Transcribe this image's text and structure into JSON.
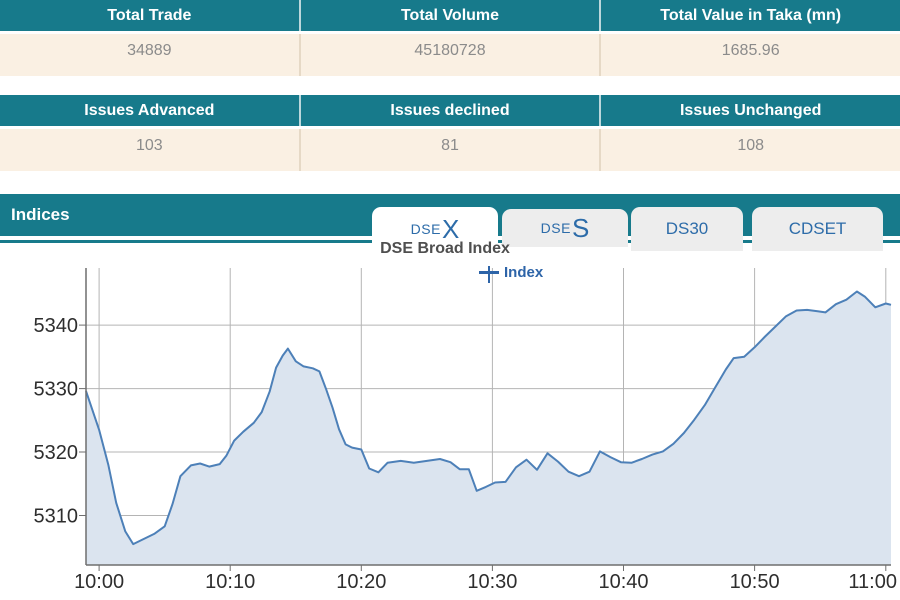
{
  "colors": {
    "teal_header": "#177a8b",
    "cream_row": "#faf0e3",
    "header_text": "#ffffff",
    "value_text": "#8b8b8b",
    "tab_text": "#2d6ca9",
    "tab_inactive_bg": "#ededed",
    "tab_active_bg": "#ffffff"
  },
  "summary_table": {
    "columns": [
      {
        "header": "Total Trade",
        "value": "34889"
      },
      {
        "header": "Total Volume",
        "value": "45180728"
      },
      {
        "header": "Total Value in Taka (mn)",
        "value": "1685.96"
      }
    ]
  },
  "issues_table": {
    "columns": [
      {
        "header": "Issues Advanced",
        "value": "103"
      },
      {
        "header": "Issues declined",
        "value": "81"
      },
      {
        "header": "Issues Unchanged",
        "value": "108"
      }
    ]
  },
  "indices": {
    "title": "Indices",
    "tabs": [
      {
        "label": "DSEX",
        "prefix": "DSE",
        "suffix": "X",
        "active": true
      },
      {
        "label": "DSES",
        "prefix": "DSE",
        "suffix": "S",
        "active": false
      },
      {
        "label": "DS30",
        "active": false
      },
      {
        "label": "CDSET",
        "active": false
      }
    ]
  },
  "chart_data": {
    "type": "area",
    "title": "DSE Broad Index",
    "legend": {
      "items": [
        "Index"
      ],
      "position": "top-center"
    },
    "xlabel": "",
    "ylabel": "",
    "x_unit": "minutes after 10:00",
    "x_ticks": [
      {
        "t": 0,
        "label": "10:00"
      },
      {
        "t": 10,
        "label": "10:10"
      },
      {
        "t": 20,
        "label": "10:20"
      },
      {
        "t": 30,
        "label": "10:30"
      },
      {
        "t": 40,
        "label": "10:40"
      },
      {
        "t": 50,
        "label": "10:50"
      },
      {
        "t": 60,
        "label": "11:00"
      }
    ],
    "y_ticks": [
      5310,
      5320,
      5330,
      5340
    ],
    "xlim": [
      -1,
      60.4
    ],
    "ylim": [
      5302.2,
      5349
    ],
    "grid": true,
    "series": [
      {
        "name": "Index",
        "points": [
          [
            -1,
            5329.6
          ],
          [
            0,
            5323.5
          ],
          [
            0.7,
            5318
          ],
          [
            1.3,
            5312
          ],
          [
            2,
            5307.5
          ],
          [
            2.6,
            5305.5
          ],
          [
            3.3,
            5306.2
          ],
          [
            4.2,
            5307.1
          ],
          [
            5,
            5308.3
          ],
          [
            5.6,
            5311.8
          ],
          [
            6.2,
            5316.2
          ],
          [
            7,
            5317.9
          ],
          [
            7.7,
            5318.2
          ],
          [
            8.4,
            5317.7
          ],
          [
            9.2,
            5318.1
          ],
          [
            9.7,
            5319.4
          ],
          [
            10.3,
            5321.8
          ],
          [
            11,
            5323.2
          ],
          [
            11.8,
            5324.6
          ],
          [
            12.4,
            5326.3
          ],
          [
            13,
            5329.5
          ],
          [
            13.5,
            5333.3
          ],
          [
            14,
            5335.2
          ],
          [
            14.4,
            5336.3
          ],
          [
            15,
            5334.3
          ],
          [
            15.6,
            5333.5
          ],
          [
            16.3,
            5333.2
          ],
          [
            16.8,
            5332.7
          ],
          [
            17.3,
            5330
          ],
          [
            17.8,
            5327
          ],
          [
            18.3,
            5323.6
          ],
          [
            18.8,
            5321.2
          ],
          [
            19.3,
            5320.7
          ],
          [
            20,
            5320.4
          ],
          [
            20.6,
            5317.4
          ],
          [
            21.3,
            5316.8
          ],
          [
            22,
            5318.3
          ],
          [
            23,
            5318.6
          ],
          [
            24,
            5318.3
          ],
          [
            25,
            5318.6
          ],
          [
            26,
            5318.9
          ],
          [
            26.8,
            5318.4
          ],
          [
            27.5,
            5317.3
          ],
          [
            28.2,
            5317.3
          ],
          [
            28.8,
            5313.9
          ],
          [
            29.5,
            5314.5
          ],
          [
            30.2,
            5315.2
          ],
          [
            31,
            5315.3
          ],
          [
            31.8,
            5317.6
          ],
          [
            32.6,
            5318.8
          ],
          [
            33.4,
            5317.2
          ],
          [
            34.2,
            5319.8
          ],
          [
            35,
            5318.5
          ],
          [
            35.8,
            5316.9
          ],
          [
            36.6,
            5316.2
          ],
          [
            37.4,
            5316.9
          ],
          [
            38.2,
            5320.1
          ],
          [
            39,
            5319.2
          ],
          [
            39.8,
            5318.4
          ],
          [
            40.6,
            5318.3
          ],
          [
            41.4,
            5318.9
          ],
          [
            42.2,
            5319.6
          ],
          [
            43,
            5320.1
          ],
          [
            43.8,
            5321.3
          ],
          [
            44.6,
            5323
          ],
          [
            45.4,
            5325.1
          ],
          [
            46.2,
            5327.4
          ],
          [
            47,
            5330.2
          ],
          [
            47.8,
            5333
          ],
          [
            48.4,
            5334.8
          ],
          [
            49.2,
            5335
          ],
          [
            50,
            5336.5
          ],
          [
            50.8,
            5338.2
          ],
          [
            51.6,
            5339.8
          ],
          [
            52.4,
            5341.4
          ],
          [
            53.2,
            5342.3
          ],
          [
            54,
            5342.4
          ],
          [
            54.8,
            5342.2
          ],
          [
            55.4,
            5342
          ],
          [
            56.2,
            5343.3
          ],
          [
            57,
            5344
          ],
          [
            57.8,
            5345.3
          ],
          [
            58.4,
            5344.5
          ],
          [
            59.2,
            5342.8
          ],
          [
            60,
            5343.4
          ],
          [
            60.4,
            5343.2
          ]
        ]
      }
    ],
    "style": {
      "line": "#4d80b8",
      "fill": "#dbe4ef",
      "grid": "#b4b4b4",
      "axis": "#6e6e6e",
      "tick_text": "#2e2e2e",
      "legend_text": "#2d64a8"
    }
  }
}
